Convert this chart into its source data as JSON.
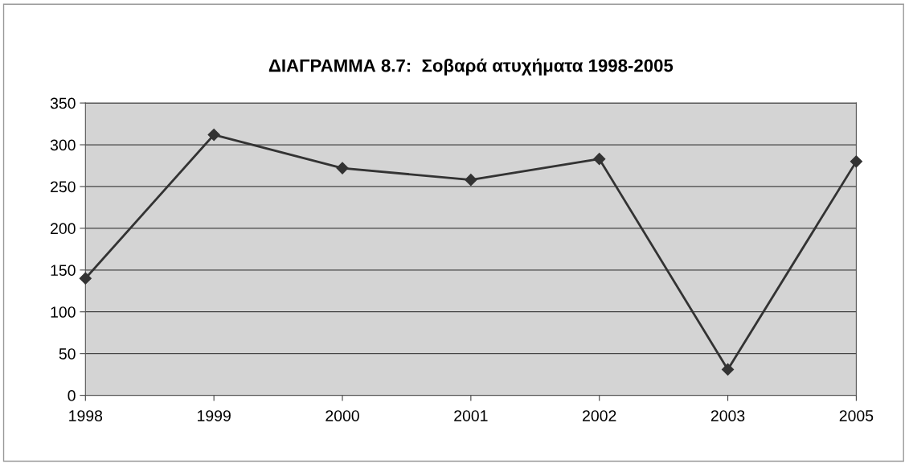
{
  "chart_data": {
    "type": "line",
    "title": "ΔΙΑΓΡΑΜΜΑ 8.7:  Σοβαρά ατυχήματα 1998-2005",
    "categories": [
      "1998",
      "1999",
      "2000",
      "2001",
      "2002",
      "2003",
      "2005"
    ],
    "series": [
      {
        "color": "#333333",
        "values": [
          140,
          312,
          272,
          258,
          283,
          31,
          280
        ]
      }
    ],
    "ylim": [
      0,
      350
    ],
    "yticks": [
      0,
      50,
      100,
      150,
      200,
      250,
      300,
      350
    ],
    "grid": "y",
    "legend": false,
    "marker": "diamond",
    "line_style": "solid"
  }
}
